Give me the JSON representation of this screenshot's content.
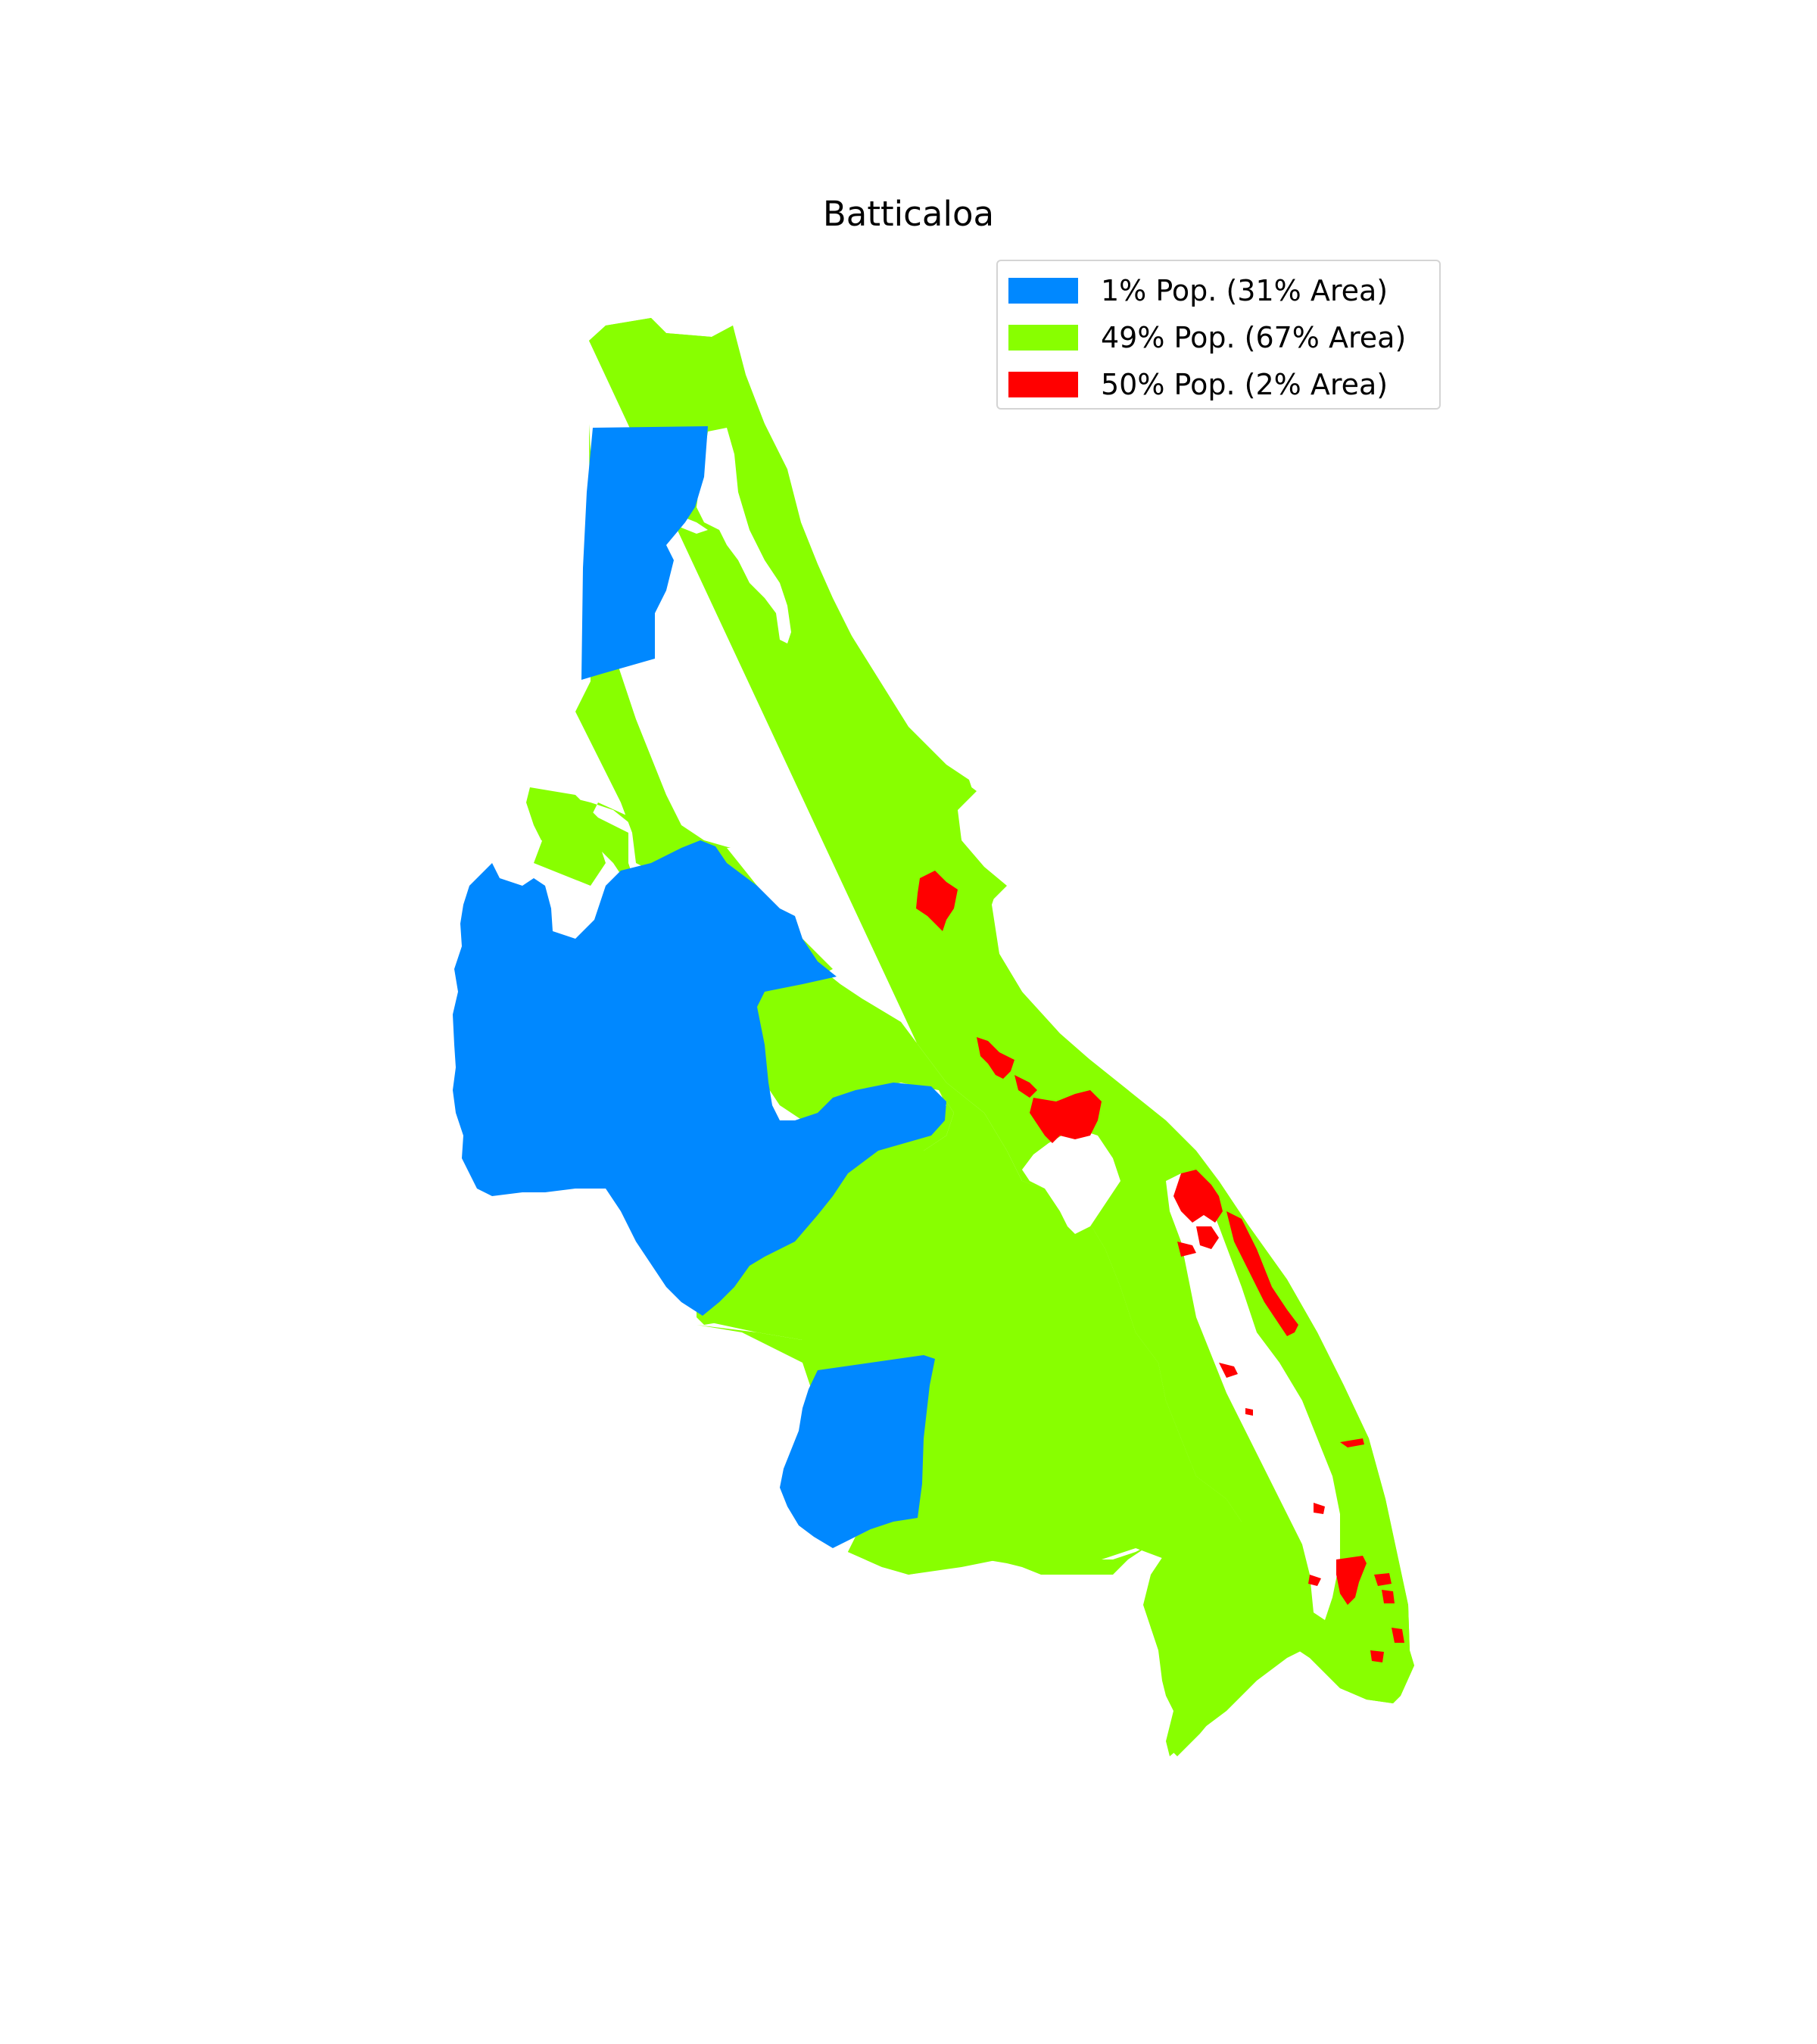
{
  "title": "Batticaloa",
  "colors": {
    "low": "#0088ff",
    "mid": "#88ff00",
    "high": "#ff0000",
    "water": "#ffffff"
  },
  "legend": {
    "placement": "upper-right",
    "items": [
      {
        "label": "1% Pop. (31% Area)",
        "color": "#0088ff",
        "population_pct": 1,
        "area_pct": 31
      },
      {
        "label": "49% Pop. (67% Area)",
        "color": "#88ff00",
        "population_pct": 49,
        "area_pct": 67
      },
      {
        "label": "50% Pop. (2% Area)",
        "color": "#ff0000",
        "population_pct": 50,
        "area_pct": 2
      }
    ]
  }
}
